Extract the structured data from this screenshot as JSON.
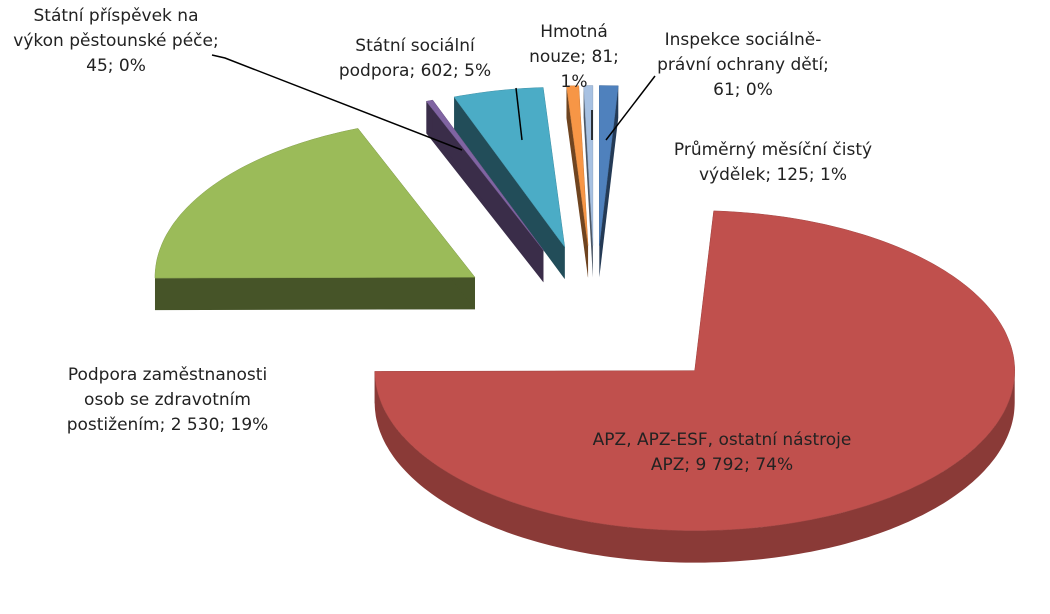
{
  "chart_data": {
    "type": "pie3d",
    "values": [
      125,
      9792,
      2530,
      45,
      602,
      81,
      61
    ],
    "value_labels": [
      "Průměrný měsíční čistý výdělek; 125; 1%",
      "APZ, APZ-ESF, ostatní nástroje APZ; 9 792; 74%",
      "Podpora zaměstnanosti osob se zdravotním postižením; 2 530; 19%",
      "Státní příspěvek na výkon pěstounské péče; 45; 0%",
      "Státní sociální podpora; 602; 5%",
      "Hmotná nouze; 81; 1%",
      "Inspekce sociálně-právní ochrany dětí; 61; 0%"
    ],
    "colors": [
      "#4f81bd",
      "#c0504d",
      "#9bbb59",
      "#8064a2",
      "#4bacc6",
      "#f79646",
      "#a7c1e2"
    ]
  }
}
